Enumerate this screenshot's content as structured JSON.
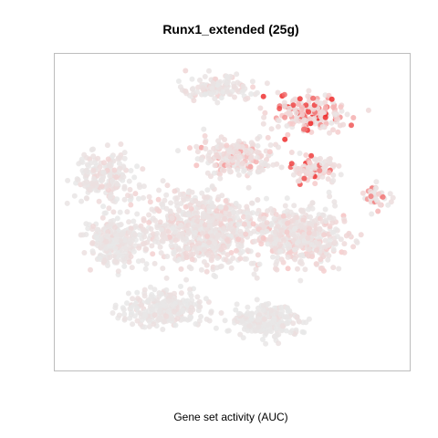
{
  "chart_data": {
    "type": "scatter",
    "title": "Runx1_extended (25g)",
    "xlabel": "Gene set activity (AUC)",
    "ylabel": "",
    "axes_shown": false,
    "grid": false,
    "legend": "none",
    "xlim": [
      0,
      100
    ],
    "ylim": [
      0,
      100
    ],
    "point_count_estimate": 2700,
    "color_scale": {
      "low": "#e8e8e8",
      "mid": "#f6c9c9",
      "high": "#ee2b2b",
      "value_range": [
        0,
        1
      ]
    },
    "clusters": [
      {
        "name": "c-top-center",
        "center": [
          46,
          91
        ],
        "spread": [
          10,
          4
        ],
        "n": 130,
        "activity": 0.22
      },
      {
        "name": "c-top-right",
        "center": [
          73,
          82
        ],
        "spread": [
          11,
          6
        ],
        "n": 200,
        "activity": 0.72
      },
      {
        "name": "c-right-mid",
        "center": [
          74,
          64
        ],
        "spread": [
          7,
          4
        ],
        "n": 90,
        "activity": 0.58
      },
      {
        "name": "c-right-edge",
        "center": [
          93,
          55
        ],
        "spread": [
          4,
          4
        ],
        "n": 40,
        "activity": 0.45
      },
      {
        "name": "c-center-upper",
        "center": [
          52,
          68
        ],
        "spread": [
          12,
          6
        ],
        "n": 200,
        "activity": 0.38
      },
      {
        "name": "c-left-upper",
        "center": [
          12,
          62
        ],
        "spread": [
          8,
          8
        ],
        "n": 190,
        "activity": 0.18
      },
      {
        "name": "c-left-mid",
        "center": [
          16,
          40
        ],
        "spread": [
          8,
          8
        ],
        "n": 260,
        "activity": 0.15
      },
      {
        "name": "c-center-body",
        "center": [
          42,
          44
        ],
        "spread": [
          16,
          12
        ],
        "n": 680,
        "activity": 0.24
      },
      {
        "name": "c-right-body",
        "center": [
          70,
          42
        ],
        "spread": [
          13,
          10
        ],
        "n": 430,
        "activity": 0.3
      },
      {
        "name": "c-bottom-left",
        "center": [
          30,
          18
        ],
        "spread": [
          12,
          6
        ],
        "n": 260,
        "activity": 0.12
      },
      {
        "name": "c-bottom-right",
        "center": [
          60,
          14
        ],
        "spread": [
          10,
          5
        ],
        "n": 220,
        "activity": 0.1
      }
    ]
  }
}
